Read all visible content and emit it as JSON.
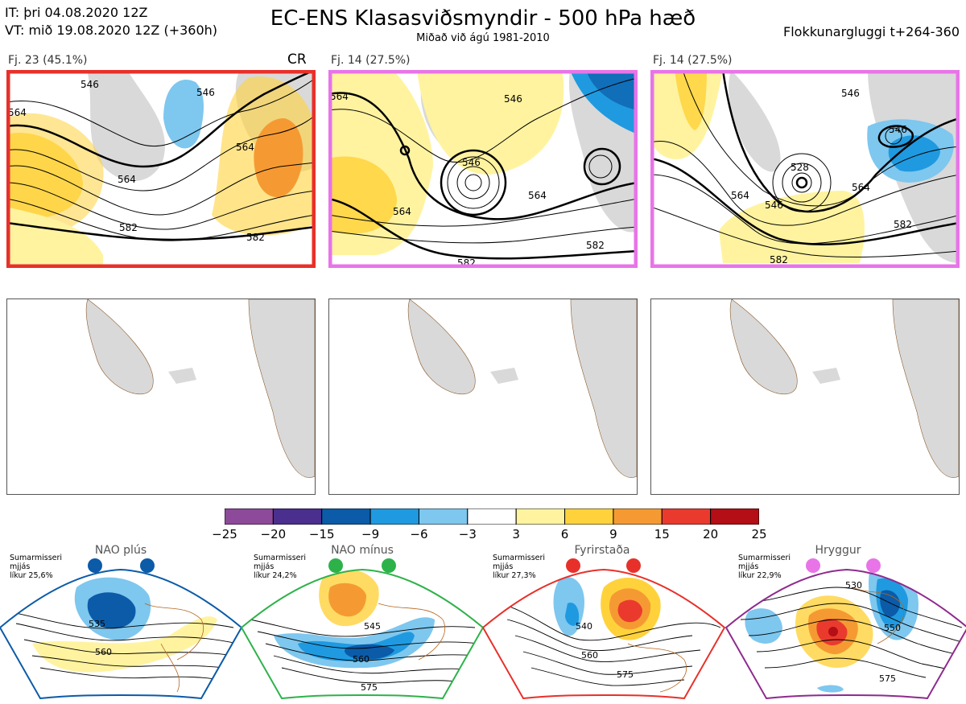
{
  "header": {
    "it_line": "IT: þri 04.08.2020 12Z",
    "vt_line": "VT: mið 19.08.2020 12Z  (+360h)",
    "title": "EC-ENS Klasasviðsmyndir - 500 hPa hæð",
    "subtitle": "Miðað við ágú 1981-2010",
    "window": "Flokkunargluggi t+264-360"
  },
  "clusters": [
    {
      "label": "Fj. 23 (45.1%)",
      "tag": "CR",
      "border": "#e8302a",
      "contours": [
        "546",
        "564",
        "564",
        "582",
        "582",
        "564",
        "546"
      ]
    },
    {
      "label": "Fj. 14 (27.5%)",
      "tag": "",
      "border": "#e874e8",
      "contours": [
        "564",
        "546",
        "564",
        "582",
        "546",
        "564",
        "582"
      ]
    },
    {
      "label": "Fj. 14 (27.5%)",
      "tag": "",
      "border": "#e874e8",
      "contours": [
        "546",
        "528",
        "546",
        "564",
        "582",
        "582",
        "564",
        "546"
      ]
    }
  ],
  "colorbar": {
    "ticks": [
      "−25",
      "−20",
      "−15",
      "−9",
      "−6",
      "−3",
      "3",
      "6",
      "9",
      "15",
      "20",
      "25"
    ],
    "colors": [
      "#8e4a9a",
      "#4a2f8e",
      "#0b5ba8",
      "#1f9ae0",
      "#7ec7ef",
      "#ffffff",
      "#fff3a0",
      "#ffd23c",
      "#f59a32",
      "#ea3a2e",
      "#b40e16"
    ]
  },
  "regimes": [
    {
      "name": "NAO plús",
      "note": [
        "Sumarmisseri",
        "mjjás",
        "líkur 25,6%"
      ],
      "color": "#0b5ba8",
      "contours": [
        "535",
        "560"
      ]
    },
    {
      "name": "NAO mínus",
      "note": [
        "Sumarmisseri",
        "mjjás",
        "líkur 24,2%"
      ],
      "color": "#2db24a",
      "contours": [
        "545",
        "560",
        "575"
      ]
    },
    {
      "name": "Fyrirstaða",
      "note": [
        "Sumarmisseri",
        "mjjás",
        "líkur 27,3%"
      ],
      "color": "#e8302a",
      "contours": [
        "540",
        "560",
        "575"
      ]
    },
    {
      "name": "Hryggur",
      "note": [
        "Sumarmisseri",
        "mjjás",
        "líkur 22,9%"
      ],
      "color": "#e874e8",
      "contours": [
        "530",
        "550",
        "575"
      ]
    }
  ]
}
